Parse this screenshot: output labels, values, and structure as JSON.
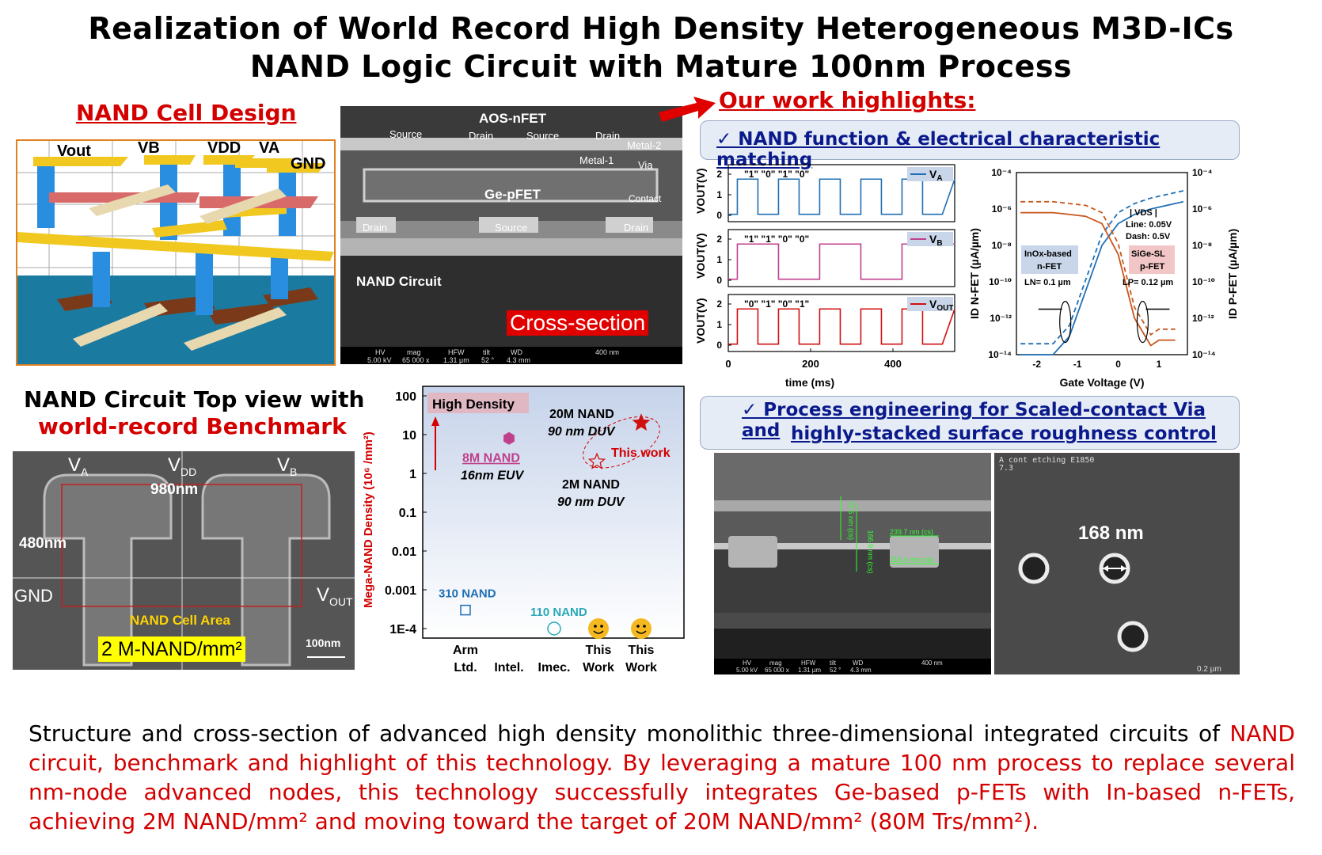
{
  "title": {
    "line1": "Realization of World Record High Density Heterogeneous M3D-ICs",
    "line2": "NAND Logic Circuit with Mature 100nm Process"
  },
  "cell_design": {
    "heading": "NAND Cell Design",
    "labels": {
      "vout": "Vout",
      "vb": "VB",
      "vdd": "VDD",
      "va": "VA",
      "gnd": "GND"
    }
  },
  "cross_section": {
    "aos": "AOS-nFET",
    "ge": "Ge-pFET",
    "top_labels": [
      "Source",
      "Drain",
      "Source",
      "Drain"
    ],
    "bottom_labels": [
      "Drain",
      "Source",
      "Drain"
    ],
    "metal2": "Metal-2",
    "metal1": "Metal-1",
    "via": "Via",
    "contact": "Contact",
    "circuit": "NAND Circuit",
    "badge": "Cross-section",
    "infobar": {
      "hv": "HV",
      "hv_v": "5.00 kV",
      "mag": "mag",
      "mag_v": "65 000 x",
      "hfw": "HFW",
      "hfw_v": "1.31 µm",
      "tilt": "tilt",
      "tilt_v": "52 °",
      "wd": "WD",
      "wd_v": "4.3 mm",
      "scale": "400 nm"
    }
  },
  "highlights": {
    "heading": "Our work highlights:",
    "box1": "✓  NAND function & electrical characteristic matching",
    "box2_line1": "✓  Process engineering for Scaled-contact Via and",
    "box2_line2": "highly-stacked surface roughness control"
  },
  "top_view": {
    "heading1": "NAND Circuit Top view with",
    "heading2": "world-record Benchmark",
    "va": "V",
    "va_sub": "A",
    "vdd": "V",
    "vdd_sub": "DD",
    "vb": "V",
    "vb_sub": "B",
    "w980": "980nm",
    "h480": "480nm",
    "gnd": "GND",
    "vout": "V",
    "vout_sub": "OUT",
    "cell_area": "NAND Cell Area",
    "density": "2 M-NAND/mm²",
    "scale": "100nm"
  },
  "sem_right": {
    "m1": "72.5 nm (cs)",
    "m2": "166.9 nm (cs)",
    "m3": "239.7 nm (cs)",
    "m4": "215.4 nm (cs)",
    "etch": "A cont etching E1850",
    "etch2": "7.3",
    "hole": "168 nm",
    "scale": "0.2 µm",
    "infobar": {
      "hv": "HV",
      "hv_v": "5.00 kV",
      "mag": "mag",
      "mag_v": "65 000 x",
      "hfw": "HFW",
      "hfw_v": "1.31 µm",
      "tilt": "tilt",
      "tilt_v": "52 °",
      "wd": "WD",
      "wd_v": "4.3 mm",
      "scale": "400 nm"
    }
  },
  "chart_data": [
    {
      "type": "line",
      "xlabel": "time (ms)",
      "ylabel": "VOUT(V)",
      "xlim": [
        0,
        550
      ],
      "xticks": [
        0,
        200,
        400
      ],
      "ylim": [
        0,
        2
      ],
      "yticks": [
        0,
        1,
        2
      ],
      "series": [
        {
          "name": "VA",
          "color": "#1f6fb4",
          "pattern_label": "\"1\"  \"0\"  \"1\"  \"0\"",
          "period_ms": 100,
          "high_first": true
        },
        {
          "name": "VB",
          "color": "#c0408c",
          "pattern_label": "\"1\"  \"1\"  \"0\"  \"0\"",
          "period_ms": 200,
          "high_first": true
        },
        {
          "name": "VOUT",
          "color": "#d01010",
          "pattern_label": "\"0\"  \"1\"  \"0\"  \"1\"",
          "period_ms": 100,
          "high_first": true
        }
      ]
    },
    {
      "type": "line",
      "xlabel": "Gate Voltage (V)",
      "ylabel_left": "ID N-FET (µA/µm)",
      "ylabel_right": "ID P-FET (µA/µm)",
      "xlim": [
        -2.5,
        1.7
      ],
      "xticks": [
        -2,
        -1,
        0,
        1
      ],
      "ylim_log": [
        -14,
        -4
      ],
      "yticks": [
        "10⁻⁴",
        "10⁻⁶",
        "10⁻⁸",
        "10⁻¹⁰",
        "10⁻¹²",
        "10⁻¹⁴"
      ],
      "annotations": {
        "vds": "| VDS |",
        "line": "Line: 0.05V",
        "dash": "Dash: 0.5V",
        "nfet1": "InOx-based",
        "nfet2": "n-FET",
        "nfet3": "LN= 0.1 µm",
        "pfet1": "SiGe-SL",
        "pfet2": "p-FET",
        "pfet3": "LP= 0.12 µm"
      },
      "series": [
        {
          "name": "n-FET",
          "color": "#1f6fb4",
          "x": [
            -2.4,
            -1.6,
            -1.2,
            -0.8,
            -0.4,
            0,
            0.4,
            0.8,
            1.2,
            1.6
          ],
          "y": [
            -14,
            -14,
            -13,
            -10.5,
            -8,
            -6.8,
            -6.3,
            -6.0,
            -5.8,
            -5.6
          ]
        },
        {
          "name": "p-FET",
          "color": "#c8561c",
          "x": [
            -2.4,
            -1.6,
            -1.2,
            -0.8,
            -0.4,
            0,
            0.4,
            0.8,
            1.0,
            1.4
          ],
          "y": [
            -6.2,
            -6.2,
            -6.3,
            -6.4,
            -6.8,
            -8.5,
            -12,
            -13.5,
            -13.2,
            -13.2
          ]
        }
      ]
    },
    {
      "type": "scatter",
      "ylabel": "Mega-NAND Density (10⁶ /mm²)",
      "categories": [
        "Arm Ltd.",
        "Intel.",
        "Imec.",
        "This Work",
        "This Work"
      ],
      "yticks": [
        "100",
        "10",
        "1",
        "0.1",
        "0.01",
        "0.001",
        "1E-4"
      ],
      "annot_high": "High Density",
      "points": [
        {
          "category": "Arm Ltd.",
          "value": 0.0003,
          "label": "310 NAND",
          "color": "#1f6fb4",
          "marker": "square"
        },
        {
          "category": "Intel.",
          "value": 8,
          "label1": "8M NAND",
          "label2": "16nm EUV",
          "color": "#c0408c",
          "marker": "hexagon"
        },
        {
          "category": "Imec.",
          "value": 0.0001,
          "label": "110 NAND",
          "color": "#2aa8b8",
          "marker": "circle"
        },
        {
          "category": "This Work",
          "value": 2,
          "label1": "2M NAND",
          "label2": "90 nm DUV",
          "color": "#d01010",
          "marker": "star-open"
        },
        {
          "category": "This Work",
          "value": 20,
          "label1": "20M NAND",
          "label2": "90 nm DUV",
          "color": "#d01010",
          "marker": "star"
        }
      ],
      "this_work": "This work"
    }
  ],
  "caption": {
    "black": "Structure and cross-section of advanced high density monolithic three-dimensional integrated circuits of",
    "red": "NAND circuit, benchmark and highlight of this technology. By leveraging a mature 100 nm process to replace several nm-node advanced nodes, this technology successfully integrates Ge-based p-FETs with In-based n-FETs, achieving 2M NAND/mm² and moving toward the target of 20M NAND/mm² (80M Trs/mm²)."
  }
}
